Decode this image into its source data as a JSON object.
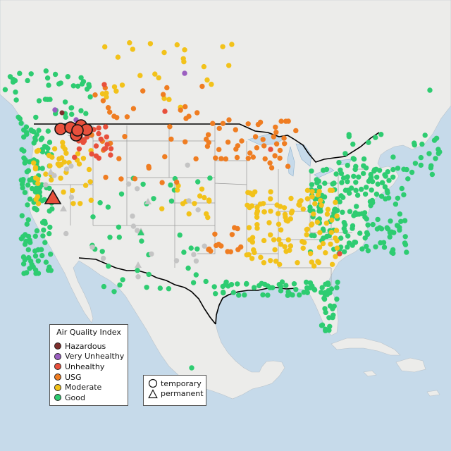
{
  "legend": {
    "title": "Air Quality Index",
    "categories": [
      {
        "key": "hazardous",
        "label": "Hazardous",
        "color": "#7e2f2c"
      },
      {
        "key": "very-unhealthy",
        "label": "Very Unhealthy",
        "color": "#9b5fc0"
      },
      {
        "key": "unhealthy",
        "label": "Unhealthy",
        "color": "#e8503c"
      },
      {
        "key": "usg",
        "label": "USG",
        "color": "#ef7d22"
      },
      {
        "key": "moderate",
        "label": "Moderate",
        "color": "#f2c21a"
      },
      {
        "key": "good",
        "label": "Good",
        "color": "#2ecc71"
      }
    ],
    "no_data_color": "#c4c4c4",
    "monitor_types": [
      {
        "key": "temporary",
        "label": "temporary",
        "shape": "circle"
      },
      {
        "key": "permanent",
        "label": "permanent",
        "shape": "triangle"
      }
    ]
  },
  "map": {
    "land_color": "#ececea",
    "water_color": "#c6daea",
    "border_color": "#000000",
    "state_line_color": "#9a9a9a"
  }
}
